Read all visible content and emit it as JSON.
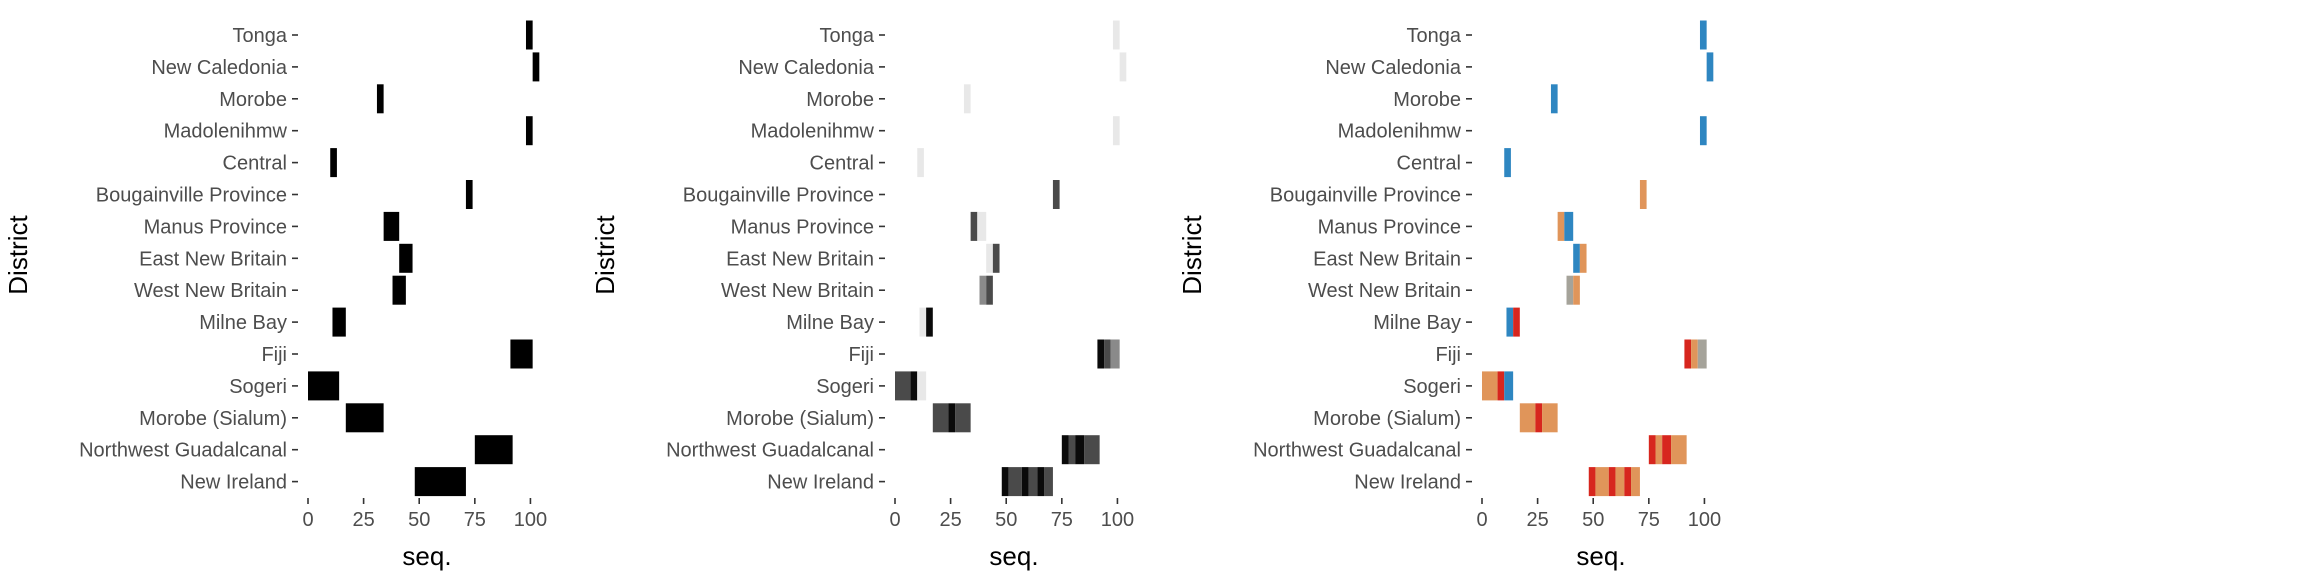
{
  "chart_data": [
    {
      "type": "heatmap",
      "style": "black",
      "xlabel": "seq.",
      "ylabel": "District",
      "xlim": [
        0,
        107
      ],
      "xticks": [
        0,
        25,
        50,
        75,
        100
      ],
      "categories": [
        "Tonga",
        "New Caledonia",
        "Morobe",
        "Madolenihmw",
        "Central",
        "Bougainville Province",
        "Manus Province",
        "East New Britain",
        "West New Britain",
        "Milne Bay",
        "Fiji",
        "Sogeri",
        "Morobe (Sialum)",
        "Northwest Guadalcanal",
        "New Ireland"
      ],
      "legend": "none",
      "grid": false,
      "tiles": [
        {
          "y": "Tonga",
          "x0": 98,
          "x1": 101,
          "value": "level1"
        },
        {
          "y": "New Caledonia",
          "x0": 101,
          "x1": 104,
          "value": "level1"
        },
        {
          "y": "Morobe",
          "x0": 31,
          "x1": 34,
          "value": "level1"
        },
        {
          "y": "Madolenihmw",
          "x0": 98,
          "x1": 101,
          "value": "level1"
        },
        {
          "y": "Central",
          "x0": 10,
          "x1": 13,
          "value": "level1"
        },
        {
          "y": "Bougainville Province",
          "x0": 71,
          "x1": 74,
          "value": "level1"
        },
        {
          "y": "Manus Province",
          "x0": 34,
          "x1": 41,
          "value": "level1"
        },
        {
          "y": "East New Britain",
          "x0": 41,
          "x1": 47,
          "value": "level1"
        },
        {
          "y": "West New Britain",
          "x0": 38,
          "x1": 44,
          "value": "level1"
        },
        {
          "y": "Milne Bay",
          "x0": 11,
          "x1": 17,
          "value": "level1"
        },
        {
          "y": "Fiji",
          "x0": 91,
          "x1": 101,
          "value": "level1"
        },
        {
          "y": "Sogeri",
          "x0": 0,
          "x1": 14,
          "value": "level1"
        },
        {
          "y": "Morobe (Sialum)",
          "x0": 17,
          "x1": 34,
          "value": "level1"
        },
        {
          "y": "Northwest Guadalcanal",
          "x0": 75,
          "x1": 92,
          "value": "level1"
        },
        {
          "y": "New Ireland",
          "x0": 48,
          "x1": 71,
          "value": "level1"
        }
      ]
    },
    {
      "type": "heatmap",
      "style": "grayscale",
      "xlabel": "seq.",
      "ylabel": "District",
      "xlim": [
        0,
        107
      ],
      "xticks": [
        0,
        25,
        50,
        75,
        100
      ],
      "categories": [
        "Tonga",
        "New Caledonia",
        "Morobe",
        "Madolenihmw",
        "Central",
        "Bougainville Province",
        "Manus Province",
        "East New Britain",
        "West New Britain",
        "Milne Bay",
        "Fiji",
        "Sogeri",
        "Morobe (Sialum)",
        "Northwest Guadalcanal",
        "New Ireland"
      ],
      "legend": "none",
      "grid": false,
      "tiles": [
        {
          "y": "Tonga",
          "x0": 98,
          "x1": 101,
          "value": "level1"
        },
        {
          "y": "New Caledonia",
          "x0": 101,
          "x1": 104,
          "value": "level1"
        },
        {
          "y": "Morobe",
          "x0": 31,
          "x1": 34,
          "value": "level1"
        },
        {
          "y": "Madolenihmw",
          "x0": 98,
          "x1": 101,
          "value": "level1"
        },
        {
          "y": "Central",
          "x0": 10,
          "x1": 13,
          "value": "level1"
        },
        {
          "y": "Bougainville Province",
          "x0": 71,
          "x1": 74,
          "value": "level2"
        },
        {
          "y": "Manus Province",
          "x0": 34,
          "x1": 37,
          "value": "level2"
        },
        {
          "y": "Manus Province",
          "x0": 37,
          "x1": 41,
          "value": "level1"
        },
        {
          "y": "East New Britain",
          "x0": 41,
          "x1": 44,
          "value": "level1"
        },
        {
          "y": "East New Britain",
          "x0": 44,
          "x1": 47,
          "value": "level2"
        },
        {
          "y": "West New Britain",
          "x0": 38,
          "x1": 41,
          "value": "level3"
        },
        {
          "y": "West New Britain",
          "x0": 41,
          "x1": 44,
          "value": "level2"
        },
        {
          "y": "Milne Bay",
          "x0": 11,
          "x1": 14,
          "value": "level1"
        },
        {
          "y": "Milne Bay",
          "x0": 14,
          "x1": 17,
          "value": "level4"
        },
        {
          "y": "Fiji",
          "x0": 91,
          "x1": 94,
          "value": "level4"
        },
        {
          "y": "Fiji",
          "x0": 94,
          "x1": 97,
          "value": "level2"
        },
        {
          "y": "Fiji",
          "x0": 97,
          "x1": 101,
          "value": "level3"
        },
        {
          "y": "Sogeri",
          "x0": 0,
          "x1": 7,
          "value": "level2"
        },
        {
          "y": "Sogeri",
          "x0": 7,
          "x1": 10,
          "value": "level4"
        },
        {
          "y": "Sogeri",
          "x0": 10,
          "x1": 14,
          "value": "level1"
        },
        {
          "y": "Morobe (Sialum)",
          "x0": 17,
          "x1": 24,
          "value": "level2"
        },
        {
          "y": "Morobe (Sialum)",
          "x0": 24,
          "x1": 27,
          "value": "level4"
        },
        {
          "y": "Morobe (Sialum)",
          "x0": 27,
          "x1": 34,
          "value": "level2"
        },
        {
          "y": "Northwest Guadalcanal",
          "x0": 75,
          "x1": 78,
          "value": "level4"
        },
        {
          "y": "Northwest Guadalcanal",
          "x0": 78,
          "x1": 81,
          "value": "level2"
        },
        {
          "y": "Northwest Guadalcanal",
          "x0": 81,
          "x1": 85,
          "value": "level4"
        },
        {
          "y": "Northwest Guadalcanal",
          "x0": 85,
          "x1": 92,
          "value": "level2"
        },
        {
          "y": "New Ireland",
          "x0": 48,
          "x1": 51,
          "value": "level4"
        },
        {
          "y": "New Ireland",
          "x0": 51,
          "x1": 57,
          "value": "level2"
        },
        {
          "y": "New Ireland",
          "x0": 57,
          "x1": 60,
          "value": "level4"
        },
        {
          "y": "New Ireland",
          "x0": 60,
          "x1": 64,
          "value": "level2"
        },
        {
          "y": "New Ireland",
          "x0": 64,
          "x1": 67,
          "value": "level4"
        },
        {
          "y": "New Ireland",
          "x0": 67,
          "x1": 71,
          "value": "level2"
        }
      ]
    },
    {
      "type": "heatmap",
      "style": "color",
      "xlabel": "seq.",
      "ylabel": "District",
      "xlim": [
        0,
        107
      ],
      "xticks": [
        0,
        25,
        50,
        75,
        100
      ],
      "categories": [
        "Tonga",
        "New Caledonia",
        "Morobe",
        "Madolenihmw",
        "Central",
        "Bougainville Province",
        "Manus Province",
        "East New Britain",
        "West New Britain",
        "Milne Bay",
        "Fiji",
        "Sogeri",
        "Morobe (Sialum)",
        "Northwest Guadalcanal",
        "New Ireland"
      ],
      "legend": "none",
      "grid": false,
      "tiles": [
        {
          "y": "Tonga",
          "x0": 98,
          "x1": 101,
          "value": "level1"
        },
        {
          "y": "New Caledonia",
          "x0": 101,
          "x1": 104,
          "value": "level1"
        },
        {
          "y": "Morobe",
          "x0": 31,
          "x1": 34,
          "value": "level1"
        },
        {
          "y": "Madolenihmw",
          "x0": 98,
          "x1": 101,
          "value": "level1"
        },
        {
          "y": "Central",
          "x0": 10,
          "x1": 13,
          "value": "level1"
        },
        {
          "y": "Bougainville Province",
          "x0": 71,
          "x1": 74,
          "value": "level2"
        },
        {
          "y": "Manus Province",
          "x0": 34,
          "x1": 37,
          "value": "level2"
        },
        {
          "y": "Manus Province",
          "x0": 37,
          "x1": 41,
          "value": "level1"
        },
        {
          "y": "East New Britain",
          "x0": 41,
          "x1": 44,
          "value": "level1"
        },
        {
          "y": "East New Britain",
          "x0": 44,
          "x1": 47,
          "value": "level2"
        },
        {
          "y": "West New Britain",
          "x0": 38,
          "x1": 41,
          "value": "level3"
        },
        {
          "y": "West New Britain",
          "x0": 41,
          "x1": 44,
          "value": "level2"
        },
        {
          "y": "Milne Bay",
          "x0": 11,
          "x1": 14,
          "value": "level1"
        },
        {
          "y": "Milne Bay",
          "x0": 14,
          "x1": 17,
          "value": "level4"
        },
        {
          "y": "Fiji",
          "x0": 91,
          "x1": 94,
          "value": "level4"
        },
        {
          "y": "Fiji",
          "x0": 94,
          "x1": 97,
          "value": "level2"
        },
        {
          "y": "Fiji",
          "x0": 97,
          "x1": 101,
          "value": "level3"
        },
        {
          "y": "Sogeri",
          "x0": 0,
          "x1": 7,
          "value": "level2"
        },
        {
          "y": "Sogeri",
          "x0": 7,
          "x1": 10,
          "value": "level4"
        },
        {
          "y": "Sogeri",
          "x0": 10,
          "x1": 14,
          "value": "level1"
        },
        {
          "y": "Morobe (Sialum)",
          "x0": 17,
          "x1": 24,
          "value": "level2"
        },
        {
          "y": "Morobe (Sialum)",
          "x0": 24,
          "x1": 27,
          "value": "level4"
        },
        {
          "y": "Morobe (Sialum)",
          "x0": 27,
          "x1": 34,
          "value": "level2"
        },
        {
          "y": "Northwest Guadalcanal",
          "x0": 75,
          "x1": 78,
          "value": "level4"
        },
        {
          "y": "Northwest Guadalcanal",
          "x0": 78,
          "x1": 81,
          "value": "level2"
        },
        {
          "y": "Northwest Guadalcanal",
          "x0": 81,
          "x1": 85,
          "value": "level4"
        },
        {
          "y": "Northwest Guadalcanal",
          "x0": 85,
          "x1": 92,
          "value": "level2"
        },
        {
          "y": "New Ireland",
          "x0": 48,
          "x1": 51,
          "value": "level4"
        },
        {
          "y": "New Ireland",
          "x0": 51,
          "x1": 57,
          "value": "level2"
        },
        {
          "y": "New Ireland",
          "x0": 57,
          "x1": 60,
          "value": "level4"
        },
        {
          "y": "New Ireland",
          "x0": 60,
          "x1": 64,
          "value": "level2"
        },
        {
          "y": "New Ireland",
          "x0": 64,
          "x1": 67,
          "value": "level4"
        },
        {
          "y": "New Ireland",
          "x0": 67,
          "x1": 71,
          "value": "level2"
        }
      ]
    }
  ],
  "colors": {
    "black": {
      "level1": "#000000",
      "level2": "#000000",
      "level3": "#000000",
      "level4": "#000000"
    },
    "grayscale": {
      "level1": "#e8e8e8",
      "level2": "#4a4a4a",
      "level3": "#8a8a8a",
      "level4": "#0a0a0a"
    },
    "color": {
      "level1": "#2e86c1",
      "level2": "#e0955a",
      "level3": "#a5a39a",
      "level4": "#d7261e"
    },
    "tick": "#333333",
    "label": "#4d4d4d",
    "title": "#000000"
  }
}
